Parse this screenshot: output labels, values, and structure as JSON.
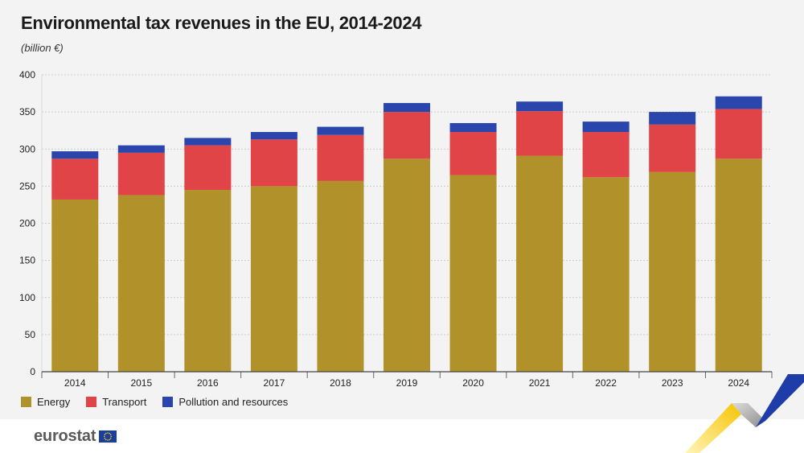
{
  "title": "Environmental tax revenues in the EU, 2014-2024",
  "subtitle": "(billion €)",
  "logo_text": "eurostat",
  "colors": {
    "energy": "#b0912a",
    "transport": "#e04447",
    "pollution": "#2a45ac",
    "grid": "#cccccc"
  },
  "chart_data": {
    "type": "bar",
    "stacked": true,
    "categories": [
      "2014",
      "2015",
      "2016",
      "2017",
      "2018",
      "2019",
      "2020",
      "2021",
      "2022",
      "2023",
      "2024"
    ],
    "series": [
      {
        "name": "Energy",
        "values": [
          232,
          238,
          245,
          250,
          257,
          287,
          265,
          291,
          262,
          269,
          287
        ]
      },
      {
        "name": "Transport",
        "values": [
          55,
          57,
          60,
          63,
          62,
          63,
          58,
          60,
          61,
          64,
          67
        ]
      },
      {
        "name": "Pollution and resources",
        "values": [
          10,
          10,
          10,
          10,
          11,
          12,
          12,
          13,
          14,
          17,
          17
        ]
      }
    ],
    "yticks": [
      0,
      50,
      100,
      150,
      200,
      250,
      300,
      350,
      400
    ],
    "ylim": [
      0,
      400
    ],
    "grid": true,
    "legend_position": "bottom-left"
  }
}
